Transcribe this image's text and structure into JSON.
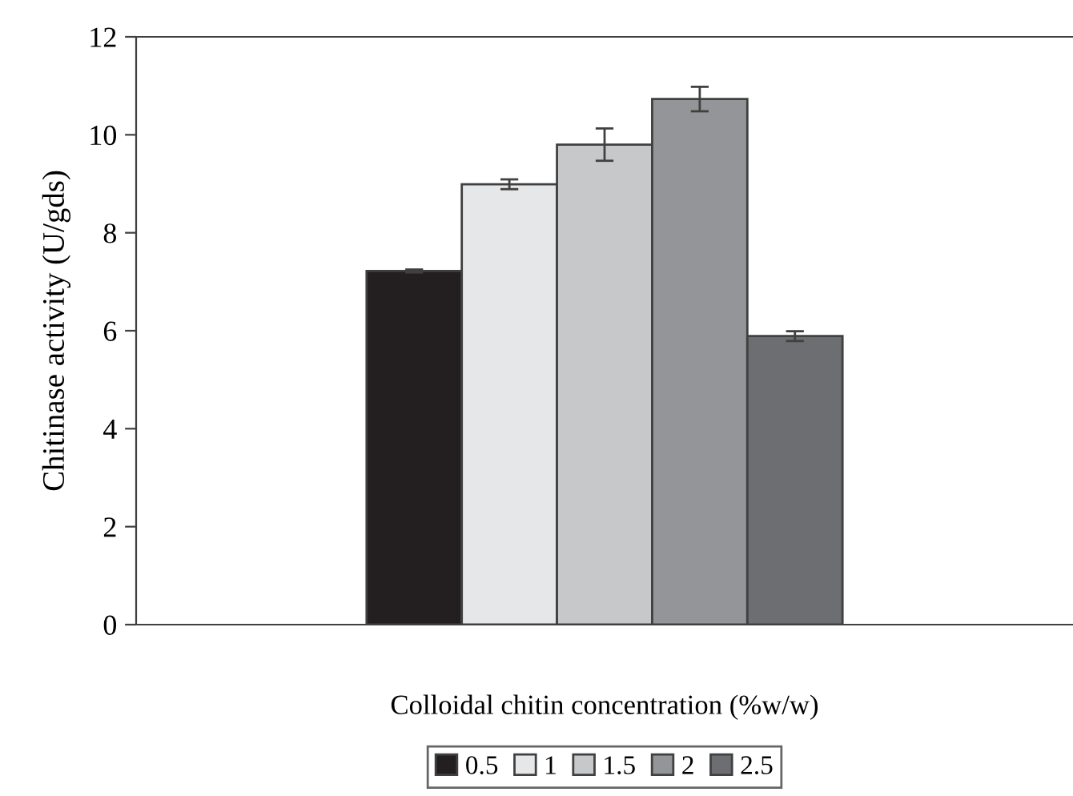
{
  "chart_data": {
    "type": "bar",
    "xlabel": "Colloidal chitin concentration (%w/w)",
    "ylabel": "Chitinase activity (U/gds)",
    "categories": [
      null
    ],
    "series": [
      {
        "name": "0.5",
        "color": "#231f20",
        "values": [
          7.22
        ],
        "errors": [
          0.03
        ]
      },
      {
        "name": "1",
        "color": "#e6e7e8",
        "values": [
          8.99
        ],
        "errors": [
          0.1
        ]
      },
      {
        "name": "1.5",
        "color": "#c7c8ca",
        "values": [
          9.8
        ],
        "errors": [
          0.33
        ]
      },
      {
        "name": "2",
        "color": "#939598",
        "values": [
          10.73
        ],
        "errors": [
          0.25
        ]
      },
      {
        "name": "2.5",
        "color": "#6d6e71",
        "values": [
          5.89
        ],
        "errors": [
          0.1
        ]
      }
    ],
    "ylim": [
      0,
      12
    ],
    "yticks": [
      0,
      2,
      4,
      6,
      8,
      10,
      12
    ],
    "grid": false,
    "legend": "bottom"
  }
}
